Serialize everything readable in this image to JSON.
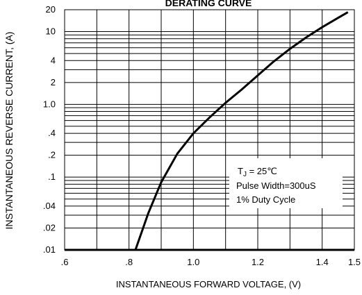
{
  "chart_data": {
    "type": "line",
    "title": "DERATING CURVE",
    "xlabel": "INSTANTANEOUS FORWARD VOLTAGE, (V)",
    "ylabel": "INSTANTANEOUS REVERSE CURRENT, (A)",
    "xlim": [
      0.6,
      1.5
    ],
    "ylim": [
      0.01,
      20
    ],
    "yscale": "log",
    "grid": true,
    "x_ticks": [
      0.6,
      0.8,
      1.0,
      1.2,
      1.4,
      1.5
    ],
    "x_tick_labels": [
      ".6",
      ".8",
      "1.0",
      "1.2",
      "1.4",
      "1.5"
    ],
    "y_ticks": [
      0.01,
      0.02,
      0.04,
      0.1,
      0.2,
      0.4,
      1.0,
      2,
      4,
      10,
      20
    ],
    "y_tick_labels": [
      ".01",
      ".02",
      ".04",
      ".1",
      ".2",
      ".4",
      "1.0",
      "2",
      "4",
      "10",
      "20"
    ],
    "series": [
      {
        "x": [
          0.82,
          0.86,
          0.9,
          0.95,
          1.0,
          1.05,
          1.1,
          1.15,
          1.2,
          1.25,
          1.3,
          1.35,
          1.4,
          1.45,
          1.48
        ],
        "y": [
          0.01,
          0.032,
          0.085,
          0.21,
          0.4,
          0.66,
          1.05,
          1.6,
          2.5,
          3.9,
          5.8,
          8.3,
          11.5,
          15.5,
          18.5
        ]
      }
    ],
    "annotation": {
      "lines": [
        "T",
        "Pulse Width=300uS",
        "1% Duty Cycle"
      ],
      "tj_sub": "J",
      "tj_value": " = 25℃"
    }
  },
  "colors": {
    "line": "#000000",
    "grid": "#000000",
    "background": "#ffffff"
  }
}
